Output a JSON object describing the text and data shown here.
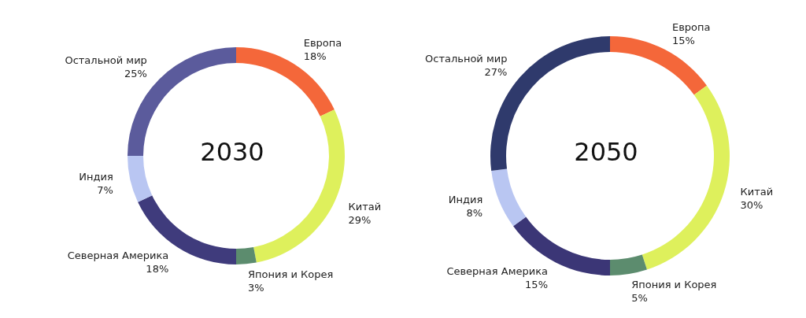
{
  "chart_data": [
    {
      "type": "donut",
      "title": "2030",
      "categories": [
        "Европа",
        "Китай",
        "Япония и Корея",
        "Северная Америка",
        "Индия",
        "Остальной мир"
      ],
      "values": [
        18,
        29,
        3,
        18,
        7,
        25
      ],
      "value_labels": [
        "18%",
        "29%",
        "3%",
        "18%",
        "7%",
        "25%"
      ],
      "colors": [
        "#f4673a",
        "#def05c",
        "#5c8c6e",
        "#3f3b7c",
        "#b9c6f2",
        "#5b5b9c"
      ],
      "legend": false
    },
    {
      "type": "donut",
      "title": "2050",
      "categories": [
        "Европа",
        "Китай",
        "Япония и Корея",
        "Северная Америка",
        "Индия",
        "Остальной мир"
      ],
      "values": [
        15,
        30,
        5,
        15,
        8,
        27
      ],
      "value_labels": [
        "15%",
        "30%",
        "5%",
        "15%",
        "8%",
        "27%"
      ],
      "colors": [
        "#f4673a",
        "#def05c",
        "#5c8c6e",
        "#3b3676",
        "#b9c6f2",
        "#2f3a6c"
      ],
      "legend": false
    }
  ]
}
